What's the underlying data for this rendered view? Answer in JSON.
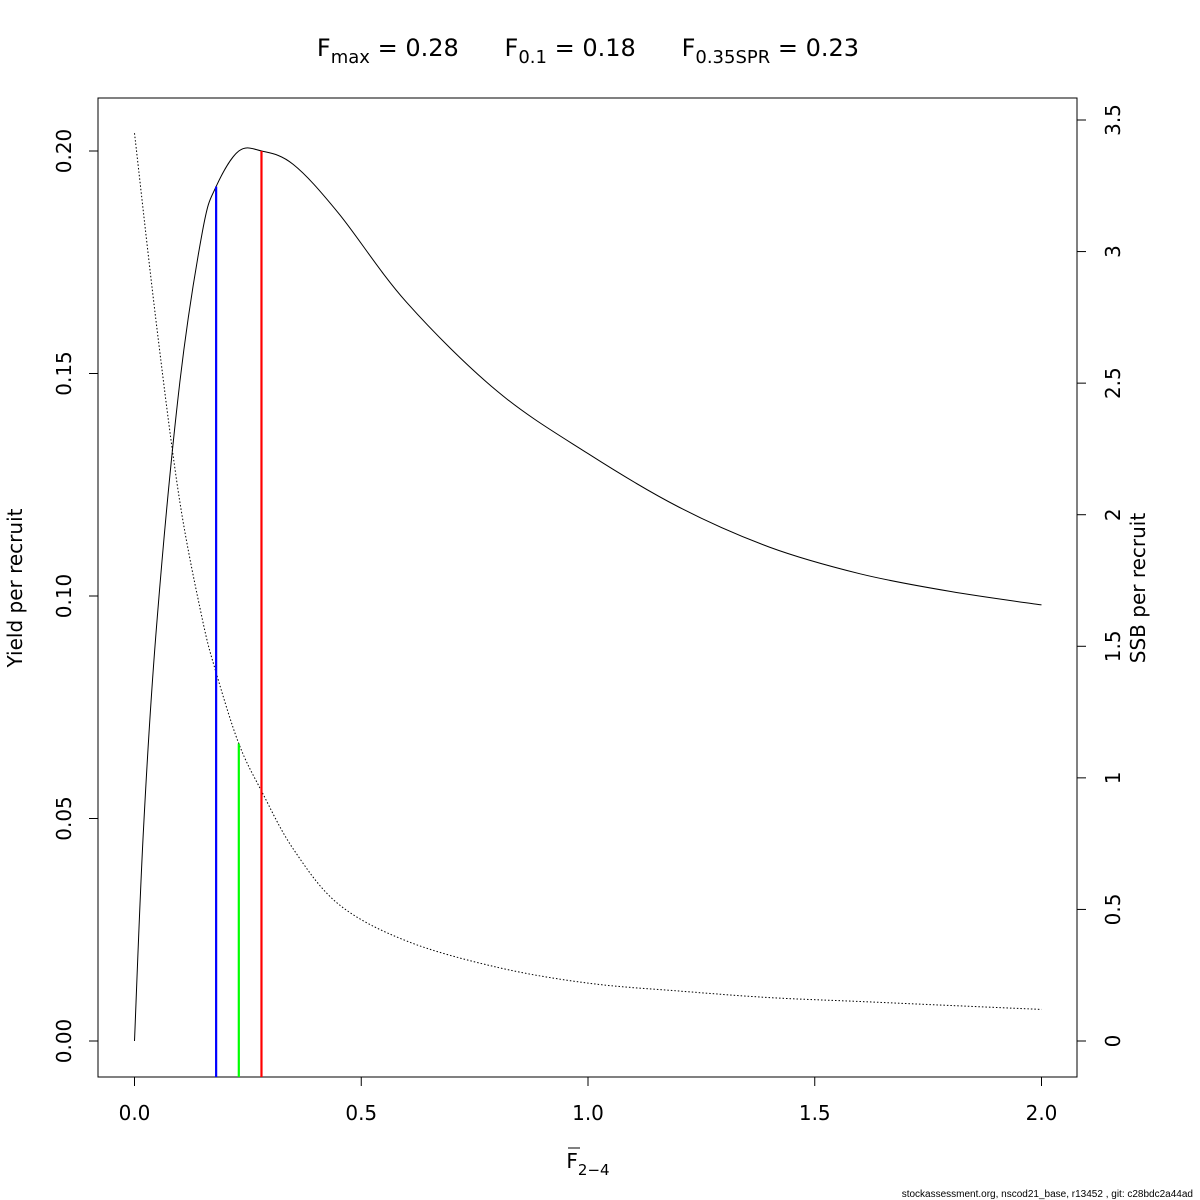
{
  "chart_data": {
    "type": "line",
    "title_parts": [
      {
        "base": "F",
        "sub": "max",
        "text": "= 0.28"
      },
      {
        "base": "F",
        "sub": "0.1",
        "text": "= 0.18"
      },
      {
        "base": "F",
        "sub": "0.35SPR",
        "text": "= 0.23"
      }
    ],
    "xlabel": {
      "base": "F",
      "sub": "2−4",
      "overline": true
    },
    "ylabel": "Yield per recruit",
    "ylabel_right": "SSB per recruit",
    "xlim": [
      0,
      2.0
    ],
    "ylim": [
      0,
      0.2
    ],
    "ylim_right": [
      0,
      3.5
    ],
    "x_ticks": [
      "0.0",
      "0.5",
      "1.0",
      "1.5",
      "2.0"
    ],
    "y_ticks": [
      "0.00",
      "0.05",
      "0.10",
      "0.15",
      "0.20"
    ],
    "y_ticks_right": [
      "0",
      "0.5",
      "1",
      "1.5",
      "2",
      "2.5",
      "3",
      "3.5"
    ],
    "ypr_series": {
      "x": [
        0,
        0.02,
        0.05,
        0.1,
        0.15,
        0.18,
        0.23,
        0.28,
        0.35,
        0.45,
        0.6,
        0.8,
        1.0,
        1.2,
        1.4,
        1.6,
        1.8,
        2.0
      ],
      "y": [
        0,
        0.048,
        0.095,
        0.148,
        0.182,
        0.192,
        0.2,
        0.2,
        0.197,
        0.186,
        0.166,
        0.146,
        0.132,
        0.12,
        0.111,
        0.105,
        0.101,
        0.098
      ]
    },
    "spr_series": {
      "x": [
        0,
        0.05,
        0.1,
        0.15,
        0.18,
        0.23,
        0.28,
        0.35,
        0.45,
        0.6,
        0.8,
        1.0,
        1.2,
        1.4,
        1.6,
        1.8,
        2.0
      ],
      "y": [
        3.45,
        2.7,
        2.05,
        1.6,
        1.4,
        1.13,
        0.95,
        0.73,
        0.52,
        0.38,
        0.28,
        0.22,
        0.19,
        0.165,
        0.15,
        0.135,
        0.12
      ]
    },
    "reference_lines": [
      {
        "name": "F0.1",
        "x": 0.18,
        "top": 0.192,
        "axis": "left",
        "color": "#0000ff"
      },
      {
        "name": "F0.35SPR",
        "x": 0.23,
        "top": 1.13,
        "axis": "right",
        "color": "#00ff00"
      },
      {
        "name": "Fmax",
        "x": 0.28,
        "top": 0.2,
        "axis": "left",
        "color": "#ff0000"
      }
    ],
    "grid": false,
    "legend": "none"
  },
  "footer": "stockassessment.org, nscod21_base, r13452 , git: c28bdc2a44ad"
}
